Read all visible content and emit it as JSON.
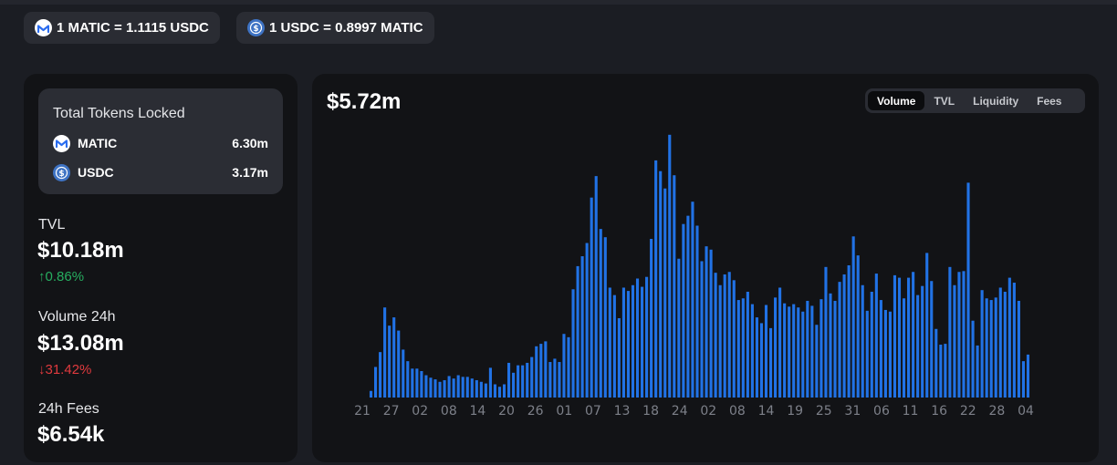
{
  "rates": [
    {
      "icon": "matic-icon",
      "text": "1 MATIC = 1.1115 USDC"
    },
    {
      "icon": "usdc-icon",
      "text": "1 USDC = 0.8997 MATIC"
    }
  ],
  "locked": {
    "title": "Total Tokens Locked",
    "tokens": [
      {
        "icon": "matic-icon",
        "symbol": "MATIC",
        "amount": "6.30m"
      },
      {
        "icon": "usdc-icon",
        "symbol": "USDC",
        "amount": "3.17m"
      }
    ]
  },
  "stats": {
    "tvl": {
      "label": "TVL",
      "value": "$10.18m",
      "change": "0.86%",
      "direction": "up"
    },
    "volume": {
      "label": "Volume 24h",
      "value": "$13.08m",
      "change": "31.42%",
      "direction": "down"
    },
    "fees": {
      "label": "24h Fees",
      "value": "$6.54k"
    }
  },
  "chart": {
    "headline": "$5.72m",
    "tabs": [
      "Volume",
      "TVL",
      "Liquidity",
      "Fees"
    ],
    "active_tab": "Volume"
  },
  "colors": {
    "bar": "#2172e5",
    "up": "#27ae60",
    "down": "#e03a3e",
    "axis_text": "#7d8089"
  },
  "chart_data": {
    "type": "bar",
    "title": "",
    "xlabel": "",
    "ylabel": "",
    "ylim": [
      0,
      32
    ],
    "grid": false,
    "x_tick_labels": [
      "21",
      "27",
      "02",
      "08",
      "14",
      "20",
      "26",
      "01",
      "07",
      "13",
      "18",
      "24",
      "02",
      "08",
      "14",
      "19",
      "25",
      "31",
      "06",
      "11",
      "16",
      "22",
      "28",
      "04"
    ],
    "values": [
      0.8,
      3.7,
      5.5,
      10.9,
      8.7,
      9.7,
      8.1,
      5.8,
      4.4,
      3.5,
      3.5,
      3.2,
      2.7,
      2.4,
      2.2,
      1.9,
      2.1,
      2.6,
      2.3,
      2.7,
      2.5,
      2.5,
      2.3,
      2.1,
      1.9,
      1.7,
      3.6,
      1.6,
      1.3,
      1.6,
      4.2,
      3.0,
      3.9,
      3.9,
      4.2,
      4.9,
      6.2,
      6.5,
      6.8,
      4.3,
      4.7,
      4.3,
      7.7,
      7.3,
      13.1,
      15.9,
      17.1,
      18.7,
      24.2,
      26.8,
      20.4,
      19.4,
      13.3,
      12.4,
      9.6,
      13.3,
      12.9,
      13.6,
      14.4,
      13.4,
      14.6,
      19.2,
      28.7,
      27.4,
      25.3,
      31.8,
      26.9,
      16.8,
      21.0,
      22.0,
      23.7,
      20.8,
      16.5,
      18.3,
      17.9,
      15.1,
      13.6,
      14.9,
      15.2,
      14.2,
      11.8,
      12.0,
      12.8,
      11.3,
      9.7,
      9.0,
      11.2,
      8.4,
      12.1,
      13.3,
      11.4,
      11.0,
      11.3,
      10.9,
      10.4,
      11.7,
      11.1,
      8.8,
      11.9,
      15.8,
      12.6,
      11.7,
      14.0,
      14.9,
      16.0,
      19.5,
      17.2,
      13.6,
      10.5,
      12.8,
      15.0,
      11.8,
      10.6,
      10.4,
      14.8,
      14.5,
      12.0,
      14.5,
      15.2,
      12.4,
      13.5,
      17.5,
      14.1,
      8.3,
      6.4,
      6.5,
      15.8,
      13.6,
      15.2,
      15.3,
      26.0,
      9.3,
      6.3,
      13.0,
      12.0,
      11.8,
      12.1,
      13.3,
      12.8,
      14.5,
      13.9,
      11.7,
      4.4,
      5.2
    ]
  }
}
